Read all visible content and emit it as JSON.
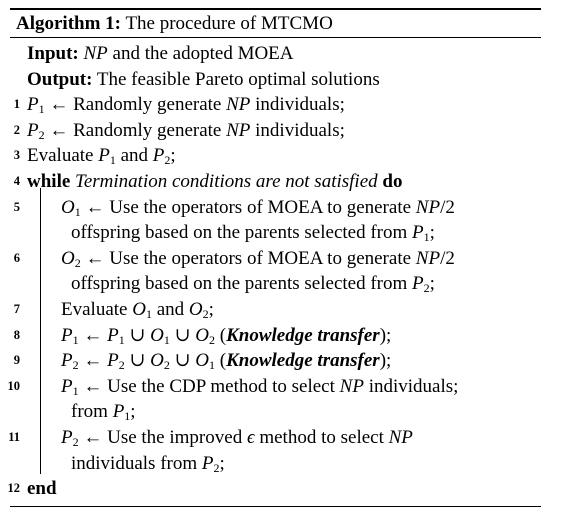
{
  "algorithm": {
    "caption_label": "Algorithm 1:",
    "caption_title": "The procedure of MTCMO",
    "input_label": "Input:",
    "input_np": "NP",
    "input_rest": "and the adopted MOEA",
    "output_label": "Output:",
    "output_text": "The feasible Pareto optimal solutions",
    "steps": [
      {
        "num": "1"
      },
      {
        "num": "2"
      },
      {
        "num": "3"
      },
      {
        "num": "4"
      },
      {
        "num": "5"
      },
      {
        "num": "6"
      },
      {
        "num": "7"
      },
      {
        "num": "8"
      },
      {
        "num": "9"
      },
      {
        "num": "10"
      },
      {
        "num": "11"
      },
      {
        "num": "12"
      }
    ],
    "text": {
      "randomly_generate": "Randomly generate",
      "individuals": "individuals;",
      "evaluate": "Evaluate",
      "and": "and",
      "while": "while",
      "termination": "Termination conditions are not satisfied",
      "do": "do",
      "use_operators": "Use the operators of MOEA to generate",
      "offspring_based": "offspring based on the parents selected from",
      "knowledge_transfer": "Knowledge transfer",
      "use_cdp": "Use the CDP method to select",
      "use_improved": "Use the improved",
      "method_to_select": "method to select",
      "from": "from",
      "individuals_from": "individuals from",
      "end": "end"
    }
  }
}
